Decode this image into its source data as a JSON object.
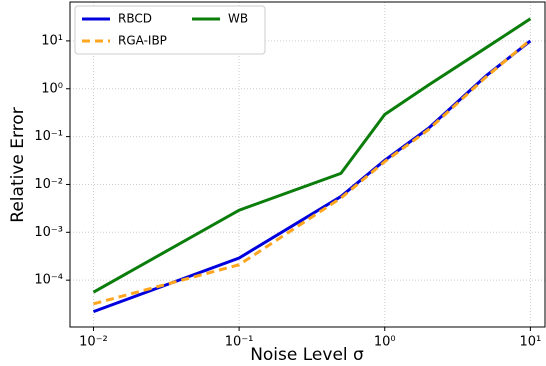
{
  "chart_data": {
    "type": "line",
    "xlabel": "Noise Level σ",
    "ylabel": "Relative Error",
    "xscale": "log",
    "yscale": "log",
    "grid": true,
    "legend": "upper left",
    "x": [
      0.01,
      0.1,
      0.5,
      1,
      2,
      5,
      10
    ],
    "series": [
      {
        "name": "RBCD",
        "color": "#0000dd",
        "dash": false,
        "values": [
          2.2e-05,
          0.00029,
          0.0056,
          0.032,
          0.15,
          1.9,
          10
        ]
      },
      {
        "name": "RGA-IBP",
        "color": "#ffa61f",
        "dash": true,
        "values": [
          3.2e-05,
          0.00021,
          0.0052,
          0.03,
          0.14,
          1.8,
          10.5
        ]
      },
      {
        "name": "WB",
        "color": "#0a7d0a",
        "dash": false,
        "values": [
          5.6e-05,
          0.0029,
          0.017,
          0.29,
          1.2,
          7.3,
          29
        ]
      }
    ],
    "xlim": [
      0.0069,
      12.6
    ],
    "ylim": [
      1.05e-05,
      65
    ],
    "xticks": [
      {
        "value": 0.01,
        "label": "10⁻²"
      },
      {
        "value": 0.1,
        "label": "10⁻¹"
      },
      {
        "value": 1,
        "label": "10⁰"
      },
      {
        "value": 10,
        "label": "10¹"
      }
    ],
    "yticks": [
      {
        "value": 0.0001,
        "label": "10⁻⁴"
      },
      {
        "value": 0.001,
        "label": "10⁻³"
      },
      {
        "value": 0.01,
        "label": "10⁻²"
      },
      {
        "value": 0.1,
        "label": "10⁻¹"
      },
      {
        "value": 1,
        "label": "10⁰"
      },
      {
        "value": 10,
        "label": "10¹"
      }
    ]
  }
}
